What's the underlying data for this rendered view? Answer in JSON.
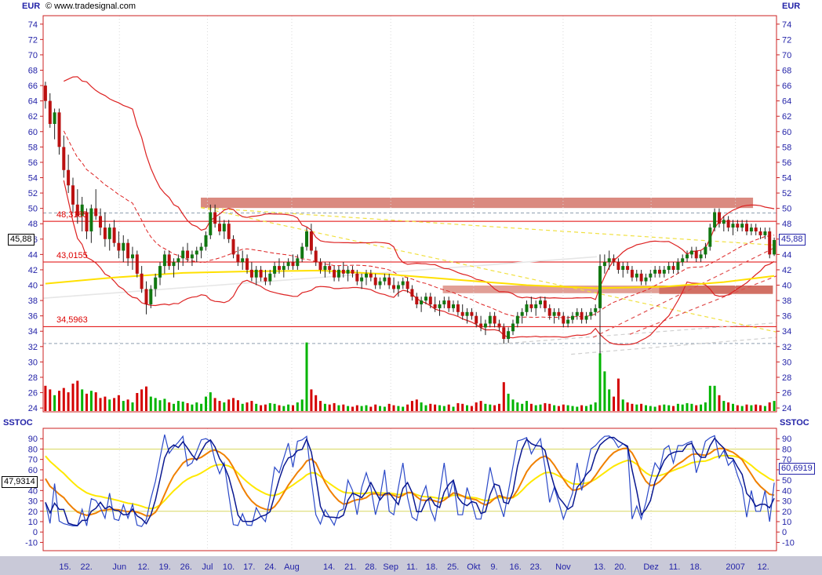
{
  "watermark": "© www.tradesignal.com",
  "axis": {
    "price_title": "EUR",
    "stoch_title": "SSTOC"
  },
  "markers": {
    "price": {
      "value": 45.88,
      "label": "45,88"
    },
    "stoch_left": {
      "value": 47.9314,
      "label": "47,9314"
    },
    "stoch_right": {
      "value": 60.6919,
      "label": "60,6919"
    }
  },
  "colors": {
    "axis_text": "#2323a8",
    "frame": "#cc2222",
    "up": "#117711",
    "down": "#bb1111",
    "wick": "#222222",
    "vol_up": "#00b400",
    "vol_down": "#d40000",
    "band": "#dd2222",
    "ma_yellow": "#ffe000",
    "level_red": "#e00000",
    "stoch_k": "#2b49c8",
    "stoch_d": "#0a1890",
    "stoch_orange": "#f08000",
    "stoch_yellow": "#ffe800",
    "stoch_level": "#d8d860",
    "date_strip": "#c9c9d8",
    "gridline": "#d9d9d9",
    "dashed_level": "#8f9fb0"
  },
  "chart_data": {
    "type": "candlestick",
    "description": "Daily OHLC price chart in EUR with volume, Bollinger bands, yellow moving average, trendlines, resistance zones and SSTOC slow stochastic lower panel",
    "price_axis": {
      "min": 24,
      "max": 74,
      "step": 2
    },
    "stoch_axis": {
      "min": -10,
      "max": 90,
      "step": 10
    },
    "x_labels": [
      {
        "t": "15.",
        "f": 0.03
      },
      {
        "t": "22.",
        "f": 0.059
      },
      {
        "t": "Jun",
        "f": 0.104
      },
      {
        "t": "12.",
        "f": 0.137
      },
      {
        "t": "19.",
        "f": 0.166
      },
      {
        "t": "26.",
        "f": 0.195
      },
      {
        "t": "Jul",
        "f": 0.224
      },
      {
        "t": "10.",
        "f": 0.253
      },
      {
        "t": "17.",
        "f": 0.281
      },
      {
        "t": "24.",
        "f": 0.31
      },
      {
        "t": "Aug",
        "f": 0.339
      },
      {
        "t": "14.",
        "f": 0.39
      },
      {
        "t": "21.",
        "f": 0.419
      },
      {
        "t": "28.",
        "f": 0.447
      },
      {
        "t": "Sep",
        "f": 0.474
      },
      {
        "t": "11.",
        "f": 0.503
      },
      {
        "t": "18.",
        "f": 0.53
      },
      {
        "t": "25.",
        "f": 0.559
      },
      {
        "t": "Okt",
        "f": 0.587
      },
      {
        "t": "9.",
        "f": 0.615
      },
      {
        "t": "16.",
        "f": 0.644
      },
      {
        "t": "23.",
        "f": 0.672
      },
      {
        "t": "Nov",
        "f": 0.709
      },
      {
        "t": "13.",
        "f": 0.759
      },
      {
        "t": "20.",
        "f": 0.787
      },
      {
        "t": "Dez",
        "f": 0.829
      },
      {
        "t": "11.",
        "f": 0.861
      },
      {
        "t": "18.",
        "f": 0.89
      },
      {
        "t": "2007",
        "f": 0.944
      },
      {
        "t": "12.",
        "f": 0.982
      }
    ],
    "horizontal_lines": [
      {
        "value": 48.3185,
        "label": "48,3185"
      },
      {
        "value": 43.0155,
        "label": "43,0155"
      },
      {
        "value": 34.5963,
        "label": "34,5963"
      }
    ],
    "dashed_levels": [
      49.4,
      32.4
    ],
    "zones": [
      {
        "x1": 0.215,
        "x2": 0.968,
        "top": 51.4,
        "bottom": 50.05,
        "color": "#d4766a",
        "opacity": 0.85
      },
      {
        "x1": 0.545,
        "x2": 0.995,
        "top": 39.95,
        "bottom": 38.95,
        "color": "#d4766a",
        "opacity": 0.7
      },
      {
        "x1": 0.84,
        "x2": 0.995,
        "top": 39.95,
        "bottom": 38.85,
        "color": "#cf6a5e",
        "opacity": 0.9
      }
    ],
    "trendlines": [
      {
        "x1": 0.0,
        "y1": 38.3,
        "x2": 0.755,
        "y2": 43.7,
        "color": "#e6e6e6",
        "width": 1.6,
        "dash": null
      },
      {
        "x1": 0.615,
        "y1": 32.3,
        "x2": 1.0,
        "y2": 35.1,
        "color": "#cfcfcf",
        "width": 1.2,
        "dash": "5,4"
      },
      {
        "x1": 0.72,
        "y1": 31.0,
        "x2": 1.0,
        "y2": 33.2,
        "color": "#cfcfcf",
        "width": 1.2,
        "dash": "5,4"
      },
      {
        "x1": 0.215,
        "y1": 50.1,
        "x2": 1.0,
        "y2": 45.2,
        "color": "#f0e040",
        "width": 1.2,
        "dash": "5,4"
      },
      {
        "x1": 0.215,
        "y1": 50.1,
        "x2": 1.0,
        "y2": 33.9,
        "color": "#f0e040",
        "width": 1.2,
        "dash": "5,4"
      },
      {
        "x1": 0.75,
        "y1": 33.2,
        "x2": 1.0,
        "y2": 45.0,
        "color": "#e05050",
        "width": 1.2,
        "dash": "5,4"
      },
      {
        "x1": 0.8,
        "y1": 33.6,
        "x2": 1.0,
        "y2": 41.2,
        "color": "#e05050",
        "width": 1.2,
        "dash": "5,4"
      }
    ],
    "yellow_ma": [
      [
        0,
        40.2
      ],
      [
        15,
        41.0
      ],
      [
        30,
        41.6
      ],
      [
        45,
        41.8
      ],
      [
        60,
        41.9
      ],
      [
        75,
        41.4
      ],
      [
        90,
        40.7
      ],
      [
        105,
        40.0
      ],
      [
        120,
        39.6
      ],
      [
        135,
        39.8
      ],
      [
        148,
        40.4
      ],
      [
        159,
        41.2
      ]
    ],
    "stoch_levels": [
      80,
      20
    ],
    "candles": [
      [
        66,
        66.5,
        63,
        64,
        35
      ],
      [
        64,
        65,
        60.5,
        61,
        30
      ],
      [
        61,
        63,
        59,
        62.5,
        22
      ],
      [
        62.5,
        63,
        57,
        58,
        28
      ],
      [
        58,
        59.5,
        54,
        55,
        32
      ],
      [
        55,
        57,
        52,
        53,
        26
      ],
      [
        53,
        54,
        49.5,
        50.5,
        38
      ],
      [
        50.5,
        52.5,
        48,
        49,
        42
      ],
      [
        49,
        51.5,
        47,
        50.5,
        30
      ],
      [
        49.5,
        50,
        46,
        47,
        24
      ],
      [
        47,
        50.5,
        45.5,
        50,
        28
      ],
      [
        50,
        52.5,
        48.5,
        49,
        26
      ],
      [
        49,
        50,
        46.5,
        47.5,
        18
      ],
      [
        47.5,
        49.5,
        45,
        46,
        20
      ],
      [
        46,
        48,
        44.5,
        47.5,
        16
      ],
      [
        47.5,
        48.5,
        45,
        45.5,
        18
      ],
      [
        45.5,
        47,
        43.5,
        44.5,
        22
      ],
      [
        44.5,
        46.5,
        43,
        45.5,
        14
      ],
      [
        45.5,
        46,
        42.5,
        43.5,
        16
      ],
      [
        43.5,
        45,
        42,
        44,
        12
      ],
      [
        44,
        44.5,
        41,
        41.5,
        25
      ],
      [
        41.5,
        42.5,
        39,
        39.5,
        30
      ],
      [
        39.5,
        40.5,
        36.2,
        37.5,
        34
      ],
      [
        37.5,
        40,
        37,
        39.5,
        20
      ],
      [
        39.5,
        41.5,
        38.5,
        41,
        18
      ],
      [
        41,
        43,
        40,
        42.5,
        15
      ],
      [
        42.5,
        44.5,
        41.5,
        44,
        17
      ],
      [
        44,
        44.5,
        42,
        42.5,
        12
      ],
      [
        42.5,
        43.5,
        41,
        43,
        10
      ],
      [
        43,
        44,
        42,
        43.5,
        14
      ],
      [
        43.5,
        45,
        42.5,
        44.5,
        13
      ],
      [
        44.5,
        45.5,
        43,
        43.5,
        11
      ],
      [
        43.5,
        44.5,
        42.5,
        44,
        9
      ],
      [
        44,
        45,
        43,
        44.5,
        12
      ],
      [
        44.5,
        45.5,
        43.5,
        45,
        10
      ],
      [
        45,
        47,
        44.5,
        46.5,
        20
      ],
      [
        46.5,
        50.5,
        46,
        49.5,
        26
      ],
      [
        49.5,
        50.5,
        47.5,
        48,
        18
      ],
      [
        48,
        49,
        46.5,
        47,
        14
      ],
      [
        47,
        48.5,
        46,
        48,
        12
      ],
      [
        48,
        48.5,
        45.5,
        46,
        16
      ],
      [
        46,
        46.5,
        43.5,
        44,
        18
      ],
      [
        44,
        45,
        42.5,
        43,
        15
      ],
      [
        43,
        44.5,
        42,
        43.5,
        10
      ],
      [
        43.5,
        44,
        41.5,
        42,
        12
      ],
      [
        42,
        43,
        40.5,
        41,
        14
      ],
      [
        41,
        42.5,
        40,
        42,
        10
      ],
      [
        42,
        42.5,
        40.5,
        41,
        8
      ],
      [
        41,
        42,
        40,
        40.5,
        9
      ],
      [
        40.5,
        42,
        40,
        41.5,
        11
      ],
      [
        41.5,
        43,
        41,
        42.5,
        10
      ],
      [
        42.5,
        43.5,
        41.5,
        42,
        8
      ],
      [
        42,
        43,
        41,
        42.5,
        7
      ],
      [
        42.5,
        43.5,
        42,
        43,
        9
      ],
      [
        43,
        44,
        42,
        42.5,
        8
      ],
      [
        42.5,
        44,
        42,
        43.5,
        12
      ],
      [
        43.5,
        45.5,
        43,
        45,
        16
      ],
      [
        45,
        47.5,
        44.5,
        47,
        95
      ],
      [
        47,
        48,
        44,
        44.5,
        30
      ],
      [
        44.5,
        45,
        42.5,
        43,
        22
      ],
      [
        43,
        43.5,
        41.5,
        42,
        14
      ],
      [
        42,
        43,
        41,
        42.5,
        10
      ],
      [
        42.5,
        43,
        41.5,
        42,
        9
      ],
      [
        42,
        42.5,
        40.5,
        41,
        11
      ],
      [
        41,
        42.5,
        40.5,
        42,
        8
      ],
      [
        42,
        43,
        41,
        41.5,
        9
      ],
      [
        41.5,
        42.5,
        40.5,
        42,
        7
      ],
      [
        42,
        42.5,
        41,
        41.5,
        6
      ],
      [
        41.5,
        42,
        40,
        40.5,
        8
      ],
      [
        40.5,
        41.5,
        39.5,
        41,
        7
      ],
      [
        41,
        42,
        40,
        41.5,
        8
      ],
      [
        41.5,
        42,
        40.5,
        41,
        6
      ],
      [
        41,
        41.5,
        39.5,
        40,
        9
      ],
      [
        40,
        41,
        39.5,
        40.5,
        7
      ],
      [
        40.5,
        41.5,
        40,
        41,
        6
      ],
      [
        41,
        41.5,
        39.5,
        40,
        10
      ],
      [
        40,
        41,
        39,
        39.5,
        8
      ],
      [
        39.5,
        40.5,
        38.5,
        40,
        7
      ],
      [
        40,
        41,
        39.5,
        40.5,
        6
      ],
      [
        40.5,
        41,
        39,
        39.5,
        9
      ],
      [
        39.5,
        40,
        38,
        38.5,
        14
      ],
      [
        38.5,
        39,
        37,
        37.5,
        16
      ],
      [
        37.5,
        38.5,
        36.5,
        38,
        12
      ],
      [
        38,
        39,
        37.5,
        38.5,
        8
      ],
      [
        38.5,
        39,
        37,
        37.5,
        10
      ],
      [
        37.5,
        38.5,
        36.5,
        37,
        9
      ],
      [
        37,
        38,
        36,
        37.5,
        8
      ],
      [
        37.5,
        38.5,
        37,
        38,
        7
      ],
      [
        38,
        38.5,
        36.5,
        37,
        9
      ],
      [
        37,
        38,
        36.5,
        37.5,
        6
      ],
      [
        37.5,
        38,
        36,
        36.5,
        11
      ],
      [
        36.5,
        37.5,
        35.5,
        36,
        10
      ],
      [
        36,
        37,
        35,
        36.5,
        8
      ],
      [
        36.5,
        37,
        35.5,
        36,
        7
      ],
      [
        36,
        36.5,
        34.5,
        35,
        12
      ],
      [
        35,
        36,
        34,
        34.5,
        14
      ],
      [
        34.5,
        35.5,
        33.5,
        35,
        10
      ],
      [
        35,
        36.5,
        34.5,
        36,
        9
      ],
      [
        36,
        36.5,
        34.5,
        35,
        8
      ],
      [
        35,
        35.5,
        34,
        34.5,
        10
      ],
      [
        34.5,
        35,
        32.4,
        33,
        40
      ],
      [
        33,
        34.5,
        32.5,
        34,
        24
      ],
      [
        34,
        35.5,
        33.5,
        35,
        16
      ],
      [
        35,
        36.5,
        34.5,
        36,
        12
      ],
      [
        36,
        37,
        35,
        36.5,
        10
      ],
      [
        36.5,
        38,
        36,
        37.5,
        14
      ],
      [
        37.5,
        38.5,
        36.5,
        37,
        10
      ],
      [
        37,
        38,
        36,
        37.5,
        8
      ],
      [
        37.5,
        38.5,
        37,
        38,
        9
      ],
      [
        38,
        38.5,
        36.5,
        37,
        11
      ],
      [
        37,
        37.5,
        35.5,
        36,
        10
      ],
      [
        36,
        37,
        35,
        36.5,
        8
      ],
      [
        36.5,
        37,
        35.5,
        36,
        7
      ],
      [
        36,
        36.5,
        34.5,
        35,
        9
      ],
      [
        35,
        36,
        34.5,
        35.5,
        8
      ],
      [
        35.5,
        36.5,
        35,
        36,
        7
      ],
      [
        36,
        37,
        35.5,
        36.5,
        6
      ],
      [
        36.5,
        37,
        35,
        35.5,
        8
      ],
      [
        35.5,
        36.5,
        35,
        36,
        7
      ],
      [
        36,
        37,
        35.5,
        36.5,
        9
      ],
      [
        36.5,
        37.5,
        36,
        37,
        12
      ],
      [
        37,
        44,
        31,
        42.5,
        80
      ],
      [
        42.5,
        44,
        41.5,
        43,
        55
      ],
      [
        43,
        44.5,
        42,
        43.5,
        30
      ],
      [
        43.5,
        44,
        42.5,
        43,
        20
      ],
      [
        43,
        43.5,
        41.5,
        42,
        45
      ],
      [
        42,
        43,
        41,
        42.5,
        16
      ],
      [
        42.5,
        43,
        41.5,
        42,
        12
      ],
      [
        42,
        42.5,
        40.5,
        41,
        10
      ],
      [
        41,
        42,
        40.5,
        41.5,
        9
      ],
      [
        41.5,
        42,
        40,
        40.5,
        10
      ],
      [
        40.5,
        41.5,
        40,
        41,
        8
      ],
      [
        41,
        42,
        40.5,
        41.5,
        7
      ],
      [
        41.5,
        42.5,
        41,
        42,
        6
      ],
      [
        42,
        42.5,
        41,
        41.5,
        8
      ],
      [
        41.5,
        42.5,
        41,
        42,
        9
      ],
      [
        42,
        43,
        41.5,
        42.5,
        8
      ],
      [
        42.5,
        43,
        41.5,
        42,
        7
      ],
      [
        42,
        43.5,
        41.5,
        43,
        10
      ],
      [
        43,
        44,
        42.5,
        43.5,
        9
      ],
      [
        43.5,
        44.5,
        43,
        44,
        11
      ],
      [
        44,
        45,
        43.5,
        44.5,
        10
      ],
      [
        44.5,
        45,
        43,
        43.5,
        8
      ],
      [
        43.5,
        44.5,
        43,
        44,
        9
      ],
      [
        44,
        45.5,
        43.5,
        45,
        12
      ],
      [
        45,
        48,
        44.5,
        47.5,
        35
      ],
      [
        47.5,
        50,
        47,
        49.5,
        35
      ],
      [
        49.5,
        50,
        47.5,
        48,
        22
      ],
      [
        48,
        49,
        47,
        48.5,
        14
      ],
      [
        48.5,
        49,
        47,
        47.5,
        12
      ],
      [
        47.5,
        48.5,
        46.5,
        48,
        10
      ],
      [
        48,
        48.5,
        47,
        47.5,
        8
      ],
      [
        47.5,
        48.5,
        47,
        48,
        7
      ],
      [
        48,
        48.5,
        46.5,
        47,
        9
      ],
      [
        47,
        48,
        46.5,
        47.5,
        8
      ],
      [
        47.5,
        48,
        46.5,
        47,
        9
      ],
      [
        47,
        47.5,
        46,
        46.5,
        8
      ],
      [
        46.5,
        47.5,
        46,
        47,
        7
      ],
      [
        47,
        47.5,
        43.5,
        44,
        12
      ],
      [
        44,
        46.2,
        43.8,
        45.88,
        14
      ]
    ]
  }
}
